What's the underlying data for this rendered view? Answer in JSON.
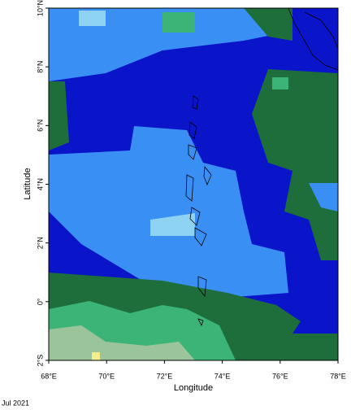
{
  "chart_data": {
    "type": "map",
    "xlabel": "Longitude",
    "ylabel": "Latitude",
    "footnote": "Jul 2021",
    "xlim": [
      68,
      78
    ],
    "ylim": [
      -2,
      10
    ],
    "xticks": [
      {
        "value": 68,
        "label": "68°E"
      },
      {
        "value": 70,
        "label": "70°E"
      },
      {
        "value": 72,
        "label": "72°E"
      },
      {
        "value": 74,
        "label": "74°E"
      },
      {
        "value": 76,
        "label": "76°E"
      },
      {
        "value": 78,
        "label": "78°E"
      }
    ],
    "yticks": [
      {
        "value": -2,
        "label": "2°S"
      },
      {
        "value": 0,
        "label": "0°"
      },
      {
        "value": 2,
        "label": "2°N"
      },
      {
        "value": 4,
        "label": "4°N"
      },
      {
        "value": 6,
        "label": "6°N"
      },
      {
        "value": 8,
        "label": "8°N"
      },
      {
        "value": 10,
        "label": "10°N"
      }
    ]
  }
}
